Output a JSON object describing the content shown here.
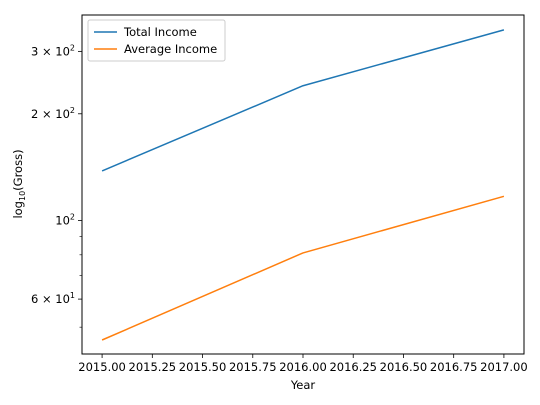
{
  "chart_data": {
    "type": "line",
    "title": "",
    "xlabel": "Year",
    "ylabel_main": "log",
    "ylabel_sub": "10",
    "ylabel_rest": "(Gross)",
    "x": [
      2015.0,
      2016.0,
      2017.0
    ],
    "series": [
      {
        "name": "Total Income",
        "color": "#1f77b4",
        "values": [
          138,
          240,
          345
        ]
      },
      {
        "name": "Average Income",
        "color": "#ff7f0e",
        "values": [
          46,
          81,
          117
        ]
      }
    ],
    "yscale": "log",
    "xlim": [
      2014.9,
      2017.1
    ],
    "ylim": [
      42,
      380
    ],
    "xticks": [
      2015.0,
      2015.25,
      2015.5,
      2015.75,
      2016.0,
      2016.25,
      2016.5,
      2016.75,
      2017.0
    ],
    "xtick_labels": [
      "2015.00",
      "2015.25",
      "2015.50",
      "2015.75",
      "2016.00",
      "2016.25",
      "2016.50",
      "2016.75",
      "2017.00"
    ],
    "yticks_major": [
      {
        "value": 60,
        "base": "6 × 10",
        "exp": "1"
      },
      {
        "value": 100,
        "base": "10",
        "exp": "2"
      },
      {
        "value": 200,
        "base": "2 × 10",
        "exp": "2"
      },
      {
        "value": 300,
        "base": "3 × 10",
        "exp": "2"
      }
    ],
    "yticks_minor": [
      50,
      70,
      80,
      90
    ],
    "grid": false,
    "legend_position": "upper-left"
  }
}
